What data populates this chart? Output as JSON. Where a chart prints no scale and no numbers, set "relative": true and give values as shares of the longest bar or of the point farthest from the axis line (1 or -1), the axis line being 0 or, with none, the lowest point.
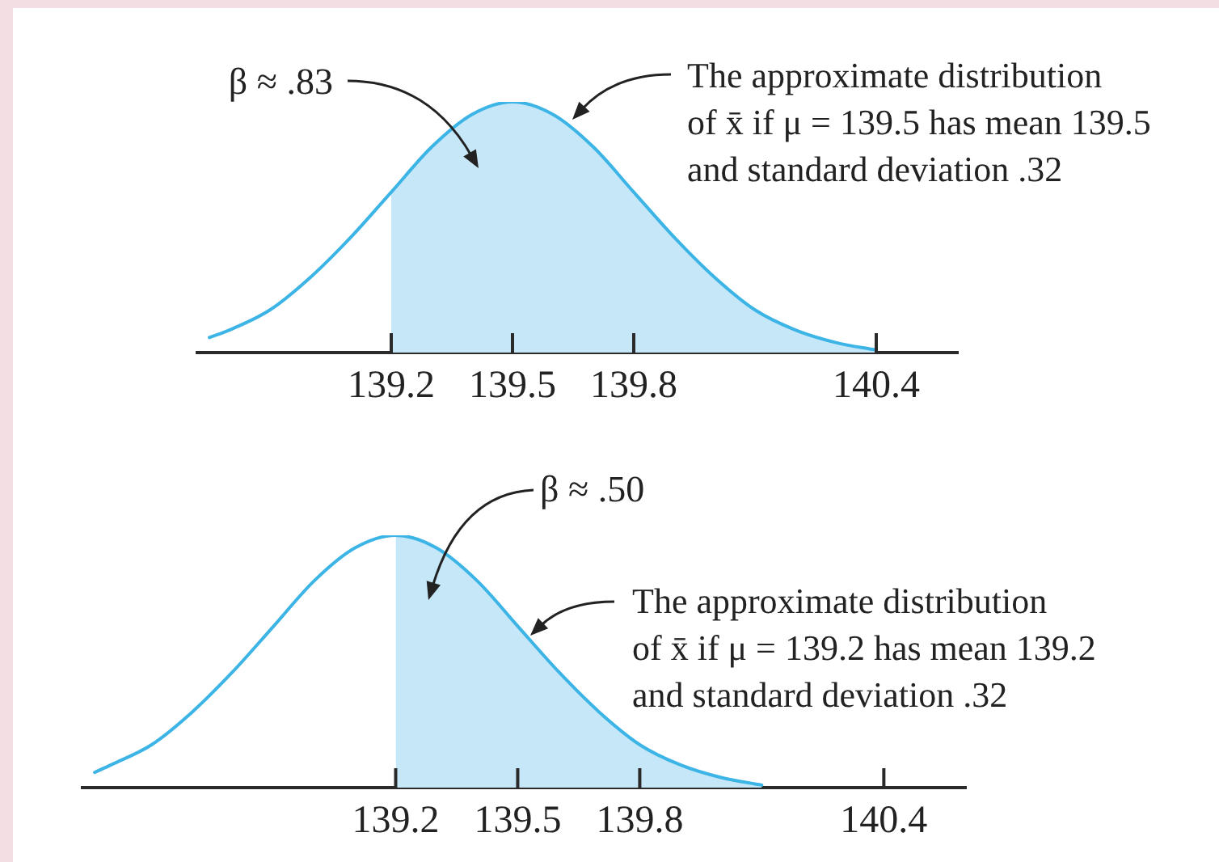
{
  "chart_data": [
    {
      "type": "line",
      "relative": true,
      "xlim": [
        138.72,
        140.6
      ],
      "xticks": [
        139.2,
        139.5,
        139.8,
        140.4
      ],
      "legend": false,
      "grid": false,
      "marker": "none",
      "series": [
        {
          "type": "line",
          "color": "#3cb4e6",
          "x": [
            138.75,
            138.8,
            138.9,
            139.0,
            139.1,
            139.2,
            139.3,
            139.4,
            139.5,
            139.6,
            139.7,
            139.8,
            139.9,
            140.0,
            140.1,
            140.2,
            140.3,
            140.4
          ],
          "values": [
            0.06,
            0.09,
            0.17,
            0.3,
            0.46,
            0.64,
            0.82,
            0.95,
            1,
            0.95,
            0.82,
            0.64,
            0.46,
            0.3,
            0.17,
            0.09,
            0.04,
            0.01
          ]
        },
        {
          "type": "area",
          "color": "#c5e7f7",
          "x": [
            139.2,
            139.3,
            139.4,
            139.5,
            139.6,
            139.7,
            139.8,
            139.9,
            140.0,
            140.1,
            140.2,
            140.3,
            140.4
          ],
          "values": [
            0.64,
            0.82,
            0.95,
            1,
            0.95,
            0.82,
            0.64,
            0.46,
            0.3,
            0.17,
            0.09,
            0.04,
            0.01
          ]
        }
      ],
      "annotations": [
        "β ≈ .83",
        "The approximate distribution\nof x̄ if μ = 139.5 has mean 139.5\nand standard deviation .32"
      ]
    },
    {
      "type": "line",
      "relative": true,
      "xlim": [
        138.43,
        140.6
      ],
      "xticks": [
        139.2,
        139.5,
        139.8,
        140.4
      ],
      "legend": false,
      "grid": false,
      "marker": "none",
      "series": [
        {
          "type": "line",
          "color": "#3cb4e6",
          "x": [
            138.46,
            138.5,
            138.6,
            138.7,
            138.8,
            138.9,
            139.0,
            139.1,
            139.2,
            139.3,
            139.4,
            139.5,
            139.6,
            139.7,
            139.8,
            139.9,
            140.0,
            140.1
          ],
          "values": [
            0.06,
            0.09,
            0.17,
            0.3,
            0.46,
            0.64,
            0.82,
            0.95,
            1,
            0.95,
            0.82,
            0.64,
            0.46,
            0.3,
            0.17,
            0.09,
            0.04,
            0.01
          ]
        },
        {
          "type": "area",
          "color": "#c5e7f7",
          "x": [
            139.2,
            139.3,
            139.4,
            139.5,
            139.6,
            139.7,
            139.8,
            139.9,
            140.0,
            140.1
          ],
          "values": [
            1,
            0.95,
            0.82,
            0.64,
            0.46,
            0.3,
            0.17,
            0.09,
            0.04,
            0.01
          ]
        }
      ],
      "annotations": [
        "β ≈ .50",
        "The approximate distribution\nof x̄ if μ = 139.2 has mean 139.2\nand standard deviation .32"
      ]
    }
  ]
}
